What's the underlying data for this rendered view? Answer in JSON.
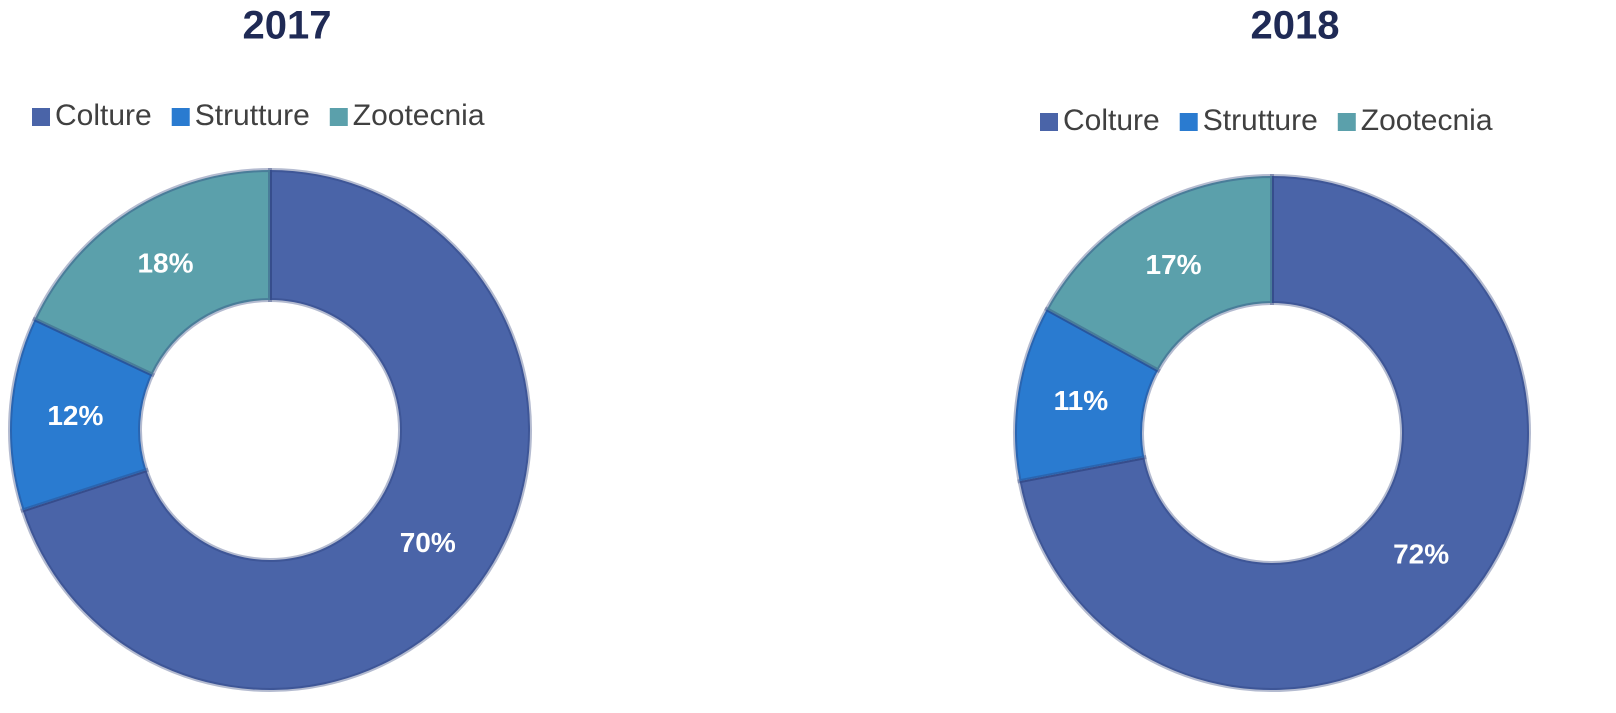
{
  "chart_data": [
    {
      "type": "donut",
      "title": "2017",
      "categories": [
        "Colture",
        "Strutture",
        "Zootecnia"
      ],
      "values": [
        70,
        12,
        18
      ],
      "value_labels": [
        "70%",
        "12%",
        "18%"
      ],
      "colors": [
        "#4a64a8",
        "#2a7bd0",
        "#5ba0ab"
      ],
      "legend": "top"
    },
    {
      "type": "donut",
      "title": "2018",
      "categories": [
        "Colture",
        "Strutture",
        "Zootecnia"
      ],
      "values": [
        72,
        11,
        17
      ],
      "value_labels": [
        "72%",
        "11%",
        "17%"
      ],
      "colors": [
        "#4a64a8",
        "#2a7bd0",
        "#5ba0ab"
      ],
      "legend": "top"
    }
  ]
}
